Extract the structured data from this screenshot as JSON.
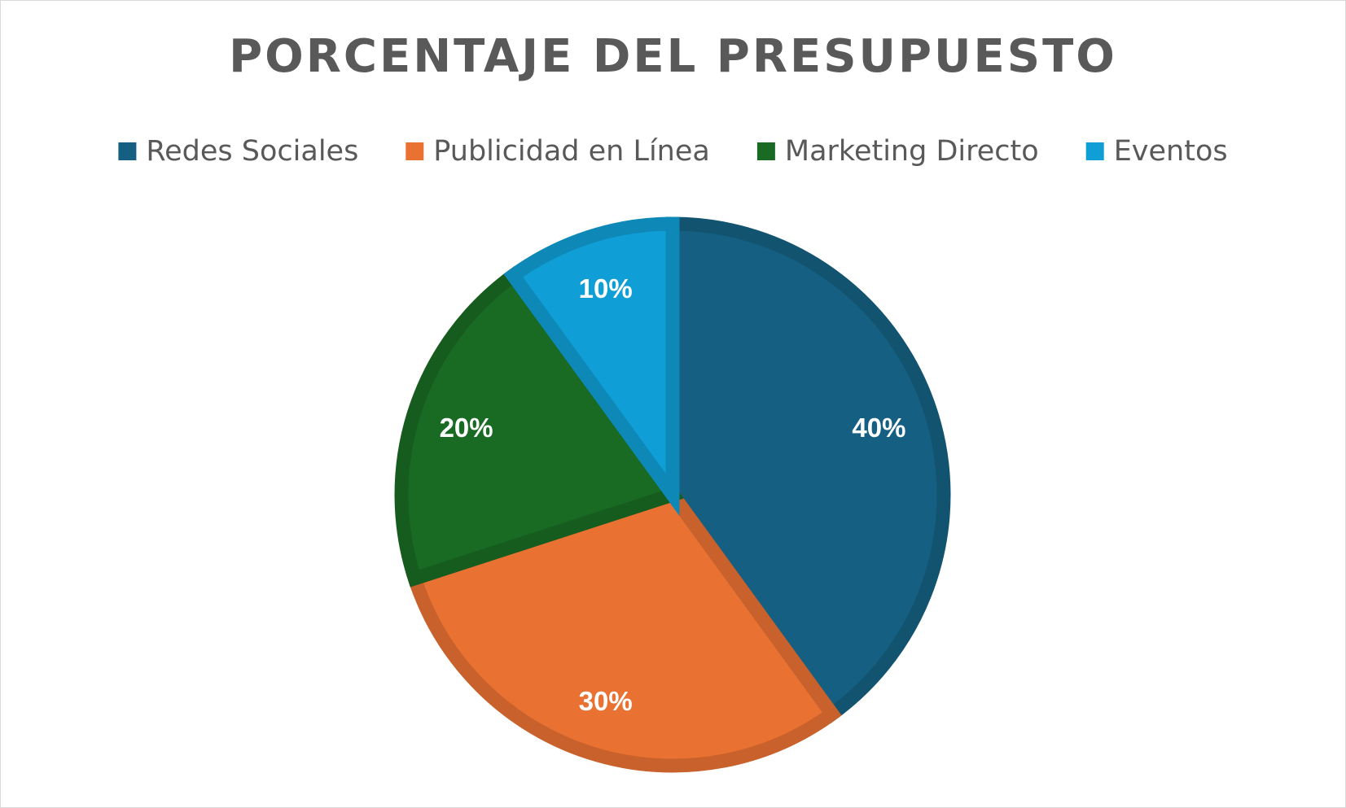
{
  "chart_data": {
    "type": "pie",
    "title": "PORCENTAJE DEL PRESUPUESTO",
    "categories": [
      "Redes Sociales",
      "Publicidad en Línea",
      "Marketing Directo",
      "Eventos"
    ],
    "values": [
      40,
      30,
      20,
      10
    ],
    "data_labels": [
      "40%",
      "30%",
      "20%",
      "10%"
    ],
    "colors": [
      "#156082",
      "#E97132",
      "#196B24",
      "#0F9ED5"
    ],
    "legend_position": "top",
    "start_angle_deg": 0,
    "direction": "clockwise"
  }
}
